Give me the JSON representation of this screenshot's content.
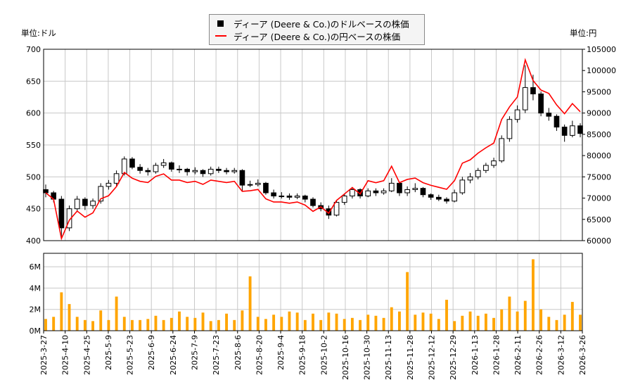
{
  "chart_data": [
    {
      "type": "candlestick+line",
      "legend": {
        "placement": "top-center",
        "entries": [
          "ディーア (Deere & Co.)のドルベースの株価",
          "ディーア (Deere & Co.)の円ベースの株価"
        ]
      },
      "left_unit": "単位:ドル",
      "right_unit": "単位:円",
      "ylim_left": [
        400,
        700
      ],
      "yticks_left": [
        "400",
        "450",
        "500",
        "550",
        "600",
        "650",
        "700"
      ],
      "ylim_right": [
        60000,
        105000
      ],
      "yticks_right": [
        "60000",
        "65000",
        "70000",
        "75000",
        "80000",
        "85000",
        "90000",
        "95000",
        "100000",
        "105000"
      ],
      "grid": true,
      "colors": {
        "up": "#ffffff",
        "down": "#000000",
        "yen_line": "#ff0000",
        "grid": "#c8c8c8"
      },
      "ohlc_usd": [
        [
          480,
          488,
          468,
          475
        ],
        [
          475,
          478,
          460,
          465
        ],
        [
          465,
          470,
          405,
          420
        ],
        [
          420,
          455,
          415,
          450
        ],
        [
          450,
          470,
          445,
          465
        ],
        [
          465,
          468,
          448,
          455
        ],
        [
          455,
          466,
          450,
          462
        ],
        [
          462,
          490,
          458,
          485
        ],
        [
          485,
          495,
          480,
          490
        ],
        [
          490,
          510,
          486,
          505
        ],
        [
          505,
          532,
          502,
          528
        ],
        [
          528,
          531,
          512,
          515
        ],
        [
          515,
          520,
          505,
          510
        ],
        [
          510,
          514,
          502,
          508
        ],
        [
          508,
          522,
          505,
          518
        ],
        [
          518,
          528,
          514,
          522
        ],
        [
          522,
          524,
          508,
          512
        ],
        [
          512,
          518,
          506,
          512
        ],
        [
          512,
          514,
          502,
          508
        ],
        [
          508,
          515,
          504,
          510
        ],
        [
          510,
          512,
          500,
          505
        ],
        [
          505,
          516,
          502,
          512
        ],
        [
          512,
          516,
          506,
          510
        ],
        [
          510,
          514,
          504,
          508
        ],
        [
          508,
          514,
          505,
          510
        ],
        [
          510,
          512,
          478,
          487
        ],
        [
          487,
          494,
          484,
          488
        ],
        [
          488,
          496,
          485,
          490
        ],
        [
          490,
          492,
          472,
          475
        ],
        [
          475,
          480,
          466,
          470
        ],
        [
          470,
          476,
          466,
          470
        ],
        [
          470,
          474,
          464,
          468
        ],
        [
          468,
          474,
          465,
          470
        ],
        [
          470,
          472,
          460,
          465
        ],
        [
          465,
          468,
          452,
          455
        ],
        [
          455,
          460,
          446,
          450
        ],
        [
          450,
          455,
          434,
          440
        ],
        [
          440,
          464,
          438,
          460
        ],
        [
          460,
          474,
          456,
          470
        ],
        [
          470,
          484,
          466,
          480
        ],
        [
          480,
          482,
          466,
          470
        ],
        [
          470,
          482,
          468,
          478
        ],
        [
          478,
          482,
          470,
          475
        ],
        [
          475,
          482,
          472,
          478
        ],
        [
          478,
          498,
          476,
          490
        ],
        [
          490,
          492,
          470,
          475
        ],
        [
          475,
          485,
          470,
          480
        ],
        [
          480,
          490,
          476,
          482
        ],
        [
          482,
          484,
          468,
          472
        ],
        [
          472,
          474,
          464,
          468
        ],
        [
          468,
          472,
          462,
          465
        ],
        [
          465,
          468,
          458,
          462
        ],
        [
          462,
          480,
          460,
          475
        ],
        [
          475,
          500,
          472,
          495
        ],
        [
          495,
          506,
          490,
          500
        ],
        [
          500,
          514,
          496,
          510
        ],
        [
          510,
          522,
          506,
          518
        ],
        [
          518,
          530,
          514,
          525
        ],
        [
          525,
          565,
          522,
          560
        ],
        [
          560,
          595,
          555,
          590
        ],
        [
          590,
          612,
          585,
          605
        ],
        [
          605,
          675,
          600,
          640
        ],
        [
          640,
          660,
          620,
          630
        ],
        [
          630,
          634,
          595,
          600
        ],
        [
          600,
          608,
          588,
          595
        ],
        [
          595,
          598,
          572,
          578
        ],
        [
          578,
          582,
          555,
          565
        ],
        [
          565,
          588,
          562,
          580
        ],
        [
          580,
          584,
          562,
          568
        ]
      ],
      "close_jpy": [
        71250,
        69750,
        60480,
        64800,
        66960,
        65520,
        66530,
        69840,
        70560,
        72720,
        76030,
        74680,
        73950,
        73660,
        75110,
        75690,
        74240,
        74240,
        73660,
        73950,
        73230,
        74240,
        73950,
        73660,
        73950,
        71590,
        71740,
        72030,
        69830,
        69090,
        69090,
        68800,
        69090,
        68360,
        66890,
        67950,
        66440,
        69460,
        70970,
        72480,
        70970,
        74090,
        73630,
        74090,
        77500,
        73630,
        74400,
        74710,
        73630,
        73010,
        72540,
        72070,
        74100,
        78210,
        79000,
        80580,
        81840,
        82950,
        88480,
        91450,
        93780,
        102500,
        97650,
        95400,
        94610,
        91900,
        89840,
        92220,
        90310
      ]
    },
    {
      "type": "bar",
      "ylim": [
        0,
        6.7
      ],
      "yticks": [
        "0M",
        "2M",
        "4M",
        "6M"
      ],
      "color": "#ffa500",
      "volume_millions": [
        1.1,
        1.3,
        3.6,
        2.5,
        1.3,
        1.0,
        0.9,
        1.9,
        1.0,
        3.2,
        1.3,
        1.0,
        1.0,
        1.1,
        1.4,
        1.0,
        1.2,
        1.8,
        1.3,
        1.2,
        1.7,
        0.9,
        1.0,
        1.6,
        1.0,
        1.9,
        5.1,
        1.3,
        1.1,
        1.5,
        1.3,
        1.8,
        1.7,
        1.0,
        1.6,
        1.0,
        1.7,
        1.6,
        1.1,
        1.2,
        1.0,
        1.5,
        1.4,
        1.2,
        2.2,
        1.8,
        5.5,
        1.5,
        1.7,
        1.6,
        1.1,
        2.9,
        0.9,
        1.4,
        1.8,
        1.4,
        1.6,
        1.2,
        2.0,
        3.2,
        1.8,
        2.8,
        6.7,
        2.0,
        1.3,
        1.0,
        1.5,
        2.7,
        1.5
      ],
      "xticks": [
        "2025-3-27",
        "2025-4-10",
        "2025-4-25",
        "2025-5-9",
        "2025-5-23",
        "2025-6-9",
        "2025-6-24",
        "2025-7-9",
        "2025-7-23",
        "2025-8-6",
        "2025-8-20",
        "2025-9-4",
        "2025-9-18",
        "2025-10-2",
        "2025-10-16",
        "2025-10-30",
        "2025-11-13",
        "2025-11-28",
        "2025-12-12",
        "2025-12-29",
        "2026-1-13",
        "2026-1-28",
        "2026-2-11",
        "2026-2-26",
        "2026-3-12",
        "2026-3-26"
      ]
    }
  ]
}
